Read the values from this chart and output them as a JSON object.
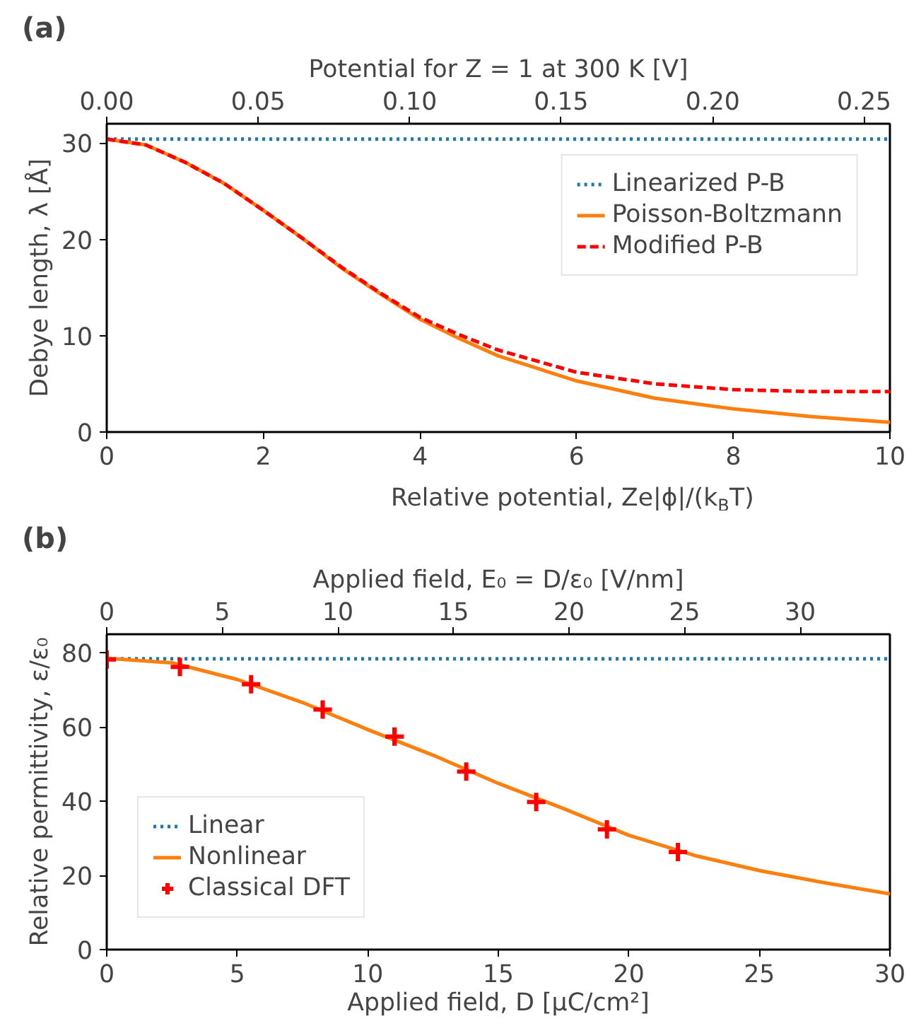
{
  "chart_data": [
    {
      "type": "line",
      "title": "(a)",
      "xlabel": "Relative potential, Ze|ϕ|/(k$_{B}$T)",
      "ylabel": "Debye length, λ [Å]",
      "x2label": "Potential for Z = 1 at 300 K [V]",
      "xlim": [
        0,
        10
      ],
      "xticks": [
        0,
        2,
        4,
        6,
        8,
        10
      ],
      "ylim": [
        0,
        32
      ],
      "yticks": [
        0,
        10,
        20,
        30
      ],
      "x2lim": [
        0,
        0.2585
      ],
      "x2ticks": [
        {
          "value": 0,
          "label": "0.00"
        },
        {
          "value": 0.05,
          "label": "0.05"
        },
        {
          "value": 0.1,
          "label": "0.10"
        },
        {
          "value": 0.15,
          "label": "0.15"
        },
        {
          "value": 0.2,
          "label": "0.20"
        },
        {
          "value": 0.25,
          "label": "0.25"
        }
      ],
      "grid": false,
      "legend": "top right",
      "series": [
        {
          "name": "Linearized P-B",
          "color": "#1f77b4",
          "line_style": "dotted",
          "x": [
            0,
            10
          ],
          "values": [
            30.4,
            30.4
          ]
        },
        {
          "name": "Poisson-Boltzmann",
          "color": "#ff7f0e",
          "line_style": "solid",
          "x": [
            0,
            0.5,
            1,
            1.5,
            2,
            2.5,
            3,
            3.5,
            4,
            4.5,
            5,
            6,
            7,
            8,
            9,
            10
          ],
          "values": [
            30.4,
            29.8,
            28.0,
            25.8,
            23.0,
            20.1,
            17.0,
            14.3,
            11.7,
            9.7,
            7.9,
            5.3,
            3.5,
            2.4,
            1.6,
            1.0
          ]
        },
        {
          "name": "Modified P-B",
          "color": "#ff0000",
          "line_style": "dashed",
          "x": [
            0,
            0.5,
            1,
            1.5,
            2,
            2.5,
            3,
            3.5,
            4,
            4.5,
            5,
            6,
            7,
            8,
            9,
            10
          ],
          "values": [
            30.4,
            29.8,
            28.0,
            25.8,
            23.0,
            20.1,
            17.1,
            14.4,
            11.9,
            10.1,
            8.5,
            6.2,
            5.0,
            4.4,
            4.2,
            4.2
          ]
        }
      ]
    },
    {
      "type": "line",
      "title": "(b)",
      "xlabel": "Applied field, D [μC/cm²]",
      "ylabel": "Relative permittivity, ε/ε₀",
      "x2label": "Applied field, E₀ = D/ε₀ [V/nm]",
      "xlim": [
        0,
        30
      ],
      "xticks": [
        0,
        5,
        10,
        15,
        20,
        25,
        30
      ],
      "ylim": [
        0,
        85
      ],
      "yticks": [
        0,
        20,
        40,
        60,
        80
      ],
      "x2lim": [
        0,
        33.88
      ],
      "x2ticks": [
        0,
        5,
        10,
        15,
        20,
        25,
        30
      ],
      "grid": false,
      "legend": "bottom left",
      "series": [
        {
          "name": "Linear",
          "color": "#1f77b4",
          "line_style": "dotted",
          "x": [
            0,
            30
          ],
          "values": [
            78.4,
            78.4
          ]
        },
        {
          "name": "Nonlinear",
          "color": "#ff7f0e",
          "line_style": "solid",
          "x": [
            0,
            2.5,
            5,
            7.5,
            10,
            12.5,
            15,
            17.5,
            20,
            22.5,
            25,
            27.5,
            30
          ],
          "values": [
            78.5,
            77.3,
            72.8,
            66.6,
            59.3,
            52.4,
            44.8,
            38.0,
            30.8,
            25.4,
            21.3,
            18.0,
            15.0
          ]
        },
        {
          "name": "Classical DFT",
          "type": "scatter",
          "marker": "cross",
          "color": "#ff0000",
          "x": [
            0,
            2.8,
            5.53,
            8.27,
            11.02,
            13.77,
            16.45,
            19.16,
            21.88
          ],
          "values": [
            78.2,
            76.2,
            71.5,
            64.7,
            57.4,
            48.0,
            39.8,
            32.4,
            26.3
          ]
        }
      ]
    }
  ]
}
